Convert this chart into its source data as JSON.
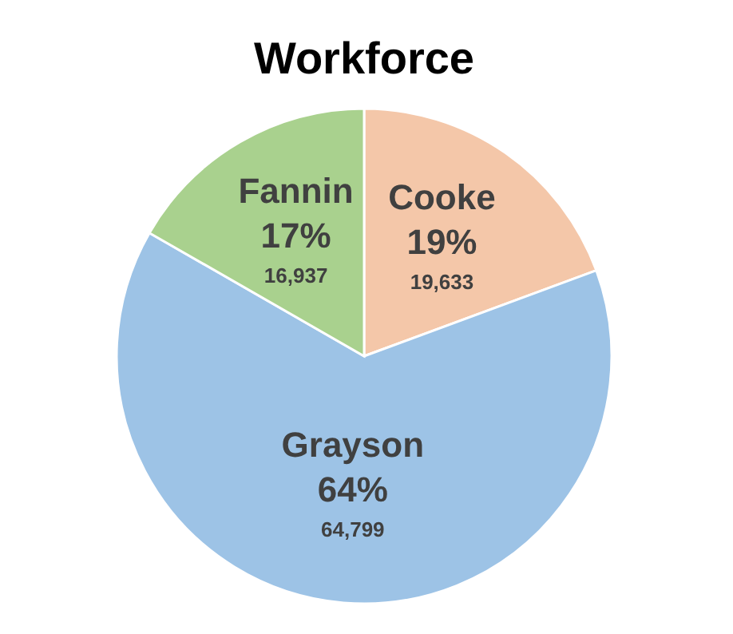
{
  "chart_data": {
    "type": "pie",
    "title": "Workforce",
    "categories": [
      "Cooke",
      "Grayson",
      "Fannin"
    ],
    "values": [
      19633,
      64799,
      16937
    ],
    "value_labels": [
      "19,633",
      "64,799",
      "16,937"
    ],
    "colors": [
      "#f4c7a9",
      "#9dc3e6",
      "#a9d18e"
    ],
    "annotations": [
      {
        "text": "19%",
        "x": "Cooke"
      },
      {
        "text": "64%",
        "x": "Grayson"
      },
      {
        "text": "17%",
        "x": "Fannin"
      }
    ]
  }
}
